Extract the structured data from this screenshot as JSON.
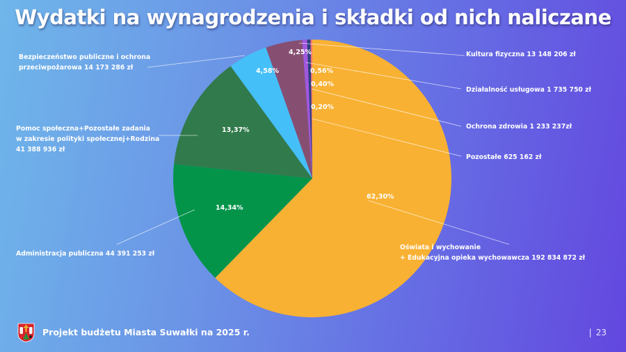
{
  "header": {
    "title": "Wydatki na wynagrodzenia i składki od nich naliczane"
  },
  "footer": {
    "logo_icon": "suwalki-coat-of-arms-icon",
    "text": "Projekt budżetu Miasta Suwałki na 2025 r.",
    "page_separator": "|",
    "page_number": "23"
  },
  "chart_data": {
    "type": "pie",
    "title": "Wydatki na wynagrodzenia i składki od nich naliczane",
    "start_angle_deg": 0,
    "direction": "clockwise",
    "center": [
      449,
      257
    ],
    "radius": 200,
    "slices": [
      {
        "label": "Oświata i wychowanie + Edukacyjna opieka wychowawcza",
        "value": 192834872,
        "value_text": "192 834 872 zł",
        "percent": 62.3,
        "percent_text": "62,30%",
        "color": "#f8b133"
      },
      {
        "label": "Administracja publiczna",
        "value": 44391253,
        "value_text": "44 391 253 zł",
        "percent": 14.34,
        "percent_text": "14,34%",
        "color": "#03944a"
      },
      {
        "label": "Pomoc społeczna+Pozostałe zadania w zakresie polityki społecznej+Rodzina",
        "value": 41388936,
        "value_text": "41 388 936 zł",
        "percent": 13.37,
        "percent_text": "13,37%",
        "color": "#317a4b"
      },
      {
        "label": "Bezpieczeństwo publiczne i ochrona przeciwpożarowa",
        "value": 14173286,
        "value_text": "14 173 286 zł",
        "percent": 4.58,
        "percent_text": "4,58%",
        "color": "#45bff7"
      },
      {
        "label": "Kultura fizyczna",
        "value": 13148206,
        "value_text": "13 148 206 zł",
        "percent": 4.25,
        "percent_text": "4,25%",
        "color": "#864f72"
      },
      {
        "label": "Działalność usługowa",
        "value": 1735750,
        "value_text": "1 735 750 zł",
        "percent": 0.56,
        "percent_text": "0,56%",
        "color": "#a157e0"
      },
      {
        "label": "Ochrona zdrowia",
        "value": 1233237,
        "value_text": "1 233 237zł",
        "percent": 0.4,
        "percent_text": "0,40%",
        "color": "#2f3f7c"
      },
      {
        "label": "Pozostałe",
        "value": 625162,
        "value_text": "625 162 zł",
        "percent": 0.2,
        "percent_text": "0,20%",
        "color": "#f27474"
      }
    ],
    "percent_label_positions": [
      [
        527,
        286
      ],
      [
        310,
        302
      ],
      [
        319,
        190
      ],
      [
        368,
        105
      ],
      [
        415,
        78
      ],
      [
        446,
        105
      ],
      [
        447,
        124
      ],
      [
        447,
        157
      ]
    ],
    "leader_lines": [
      [
        [
          530,
          289
        ],
        [
          732,
          352
        ]
      ],
      [
        [
          280,
          302
        ],
        [
          168,
          352
        ]
      ],
      [
        [
          284,
          195
        ],
        [
          228,
          195
        ]
      ],
      [
        [
          352,
          80
        ],
        [
          212,
          97
        ]
      ],
      [
        [
          430,
          62
        ],
        [
          668,
          80
        ]
      ],
      [
        [
          440,
          90
        ],
        [
          663,
          128
        ]
      ],
      [
        [
          448,
          128
        ],
        [
          663,
          182
        ]
      ],
      [
        [
          449,
          171
        ],
        [
          663,
          225
        ]
      ]
    ]
  },
  "labels": {
    "oswiata_line1": "Oświata i wychowanie",
    "oswiata_line2": "+ Edukacyjna opieka wychowawcza 192 834 872 zł",
    "administracja": "Administracja publiczna 44 391 253 zł",
    "pomoc_line1": "Pomoc społeczna+Pozostałe zadania",
    "pomoc_line2": "w zakresie polityki społecznej+Rodzina",
    "pomoc_line3": "41 388 936 zł",
    "bezpieczenstwo_line1": "Bezpieczeństwo publiczne i ochrona",
    "bezpieczenstwo_line2": "przeciwpożarowa 14 173 286 zł",
    "kultura": "Kultura fizyczna 13 148 206 zł",
    "dzialalnosc": "Działalność usługowa 1 735 750 zł",
    "ochrona": "Ochrona zdrowia 1 233 237zł",
    "pozostale": "Pozostałe 625 162 zł"
  }
}
